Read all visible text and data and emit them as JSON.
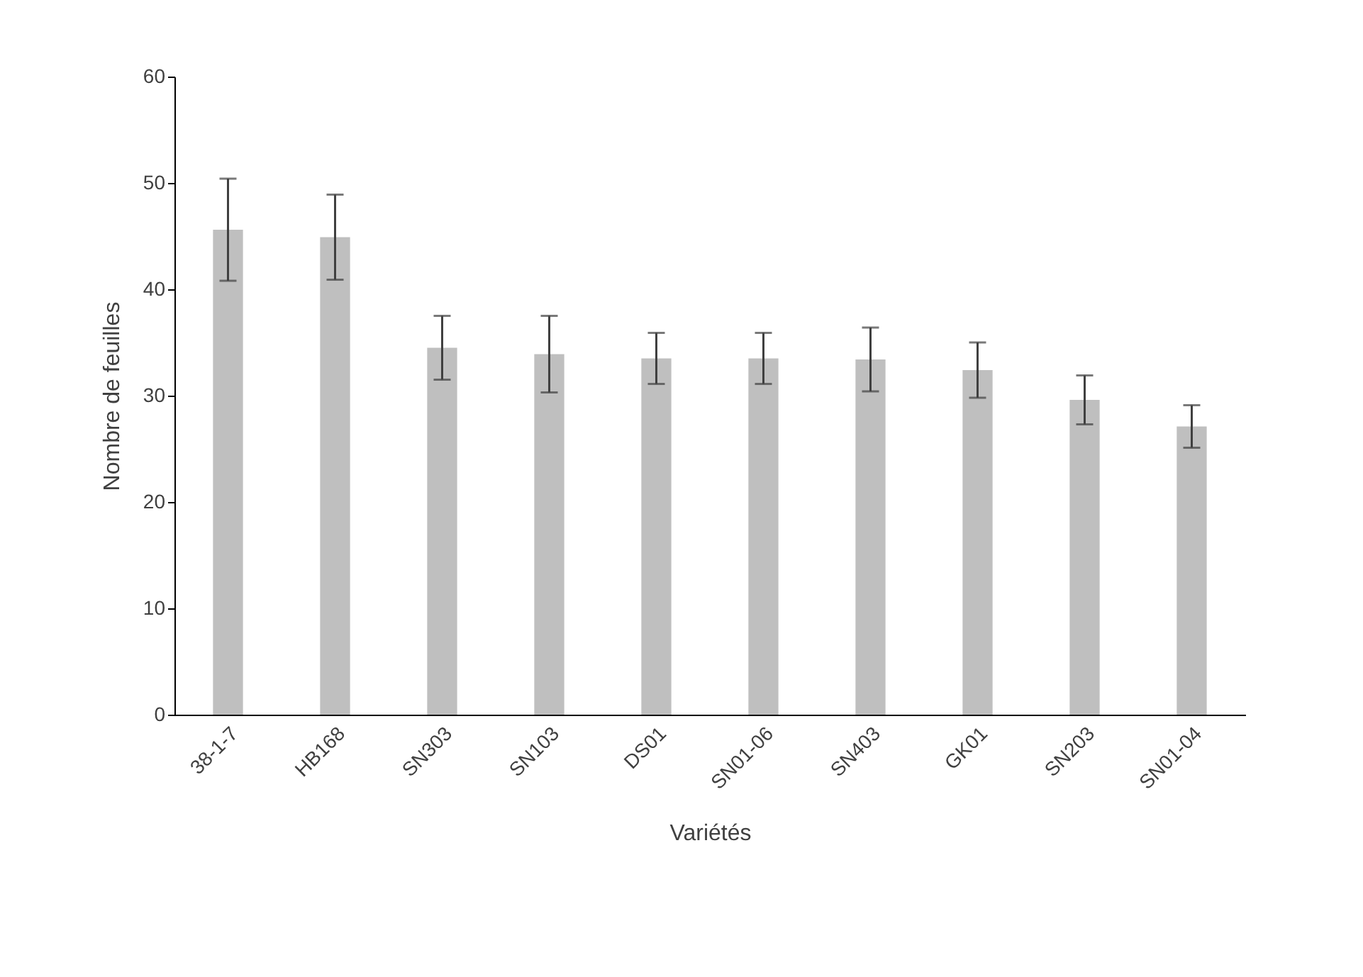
{
  "chart_data": {
    "type": "bar",
    "xlabel": "Variétés",
    "ylabel": "Nombre de feuilles",
    "categories": [
      "38-1-7",
      "HB168",
      "SN303",
      "SN103",
      "DS01",
      "SN01-06",
      "SN403",
      "GK01",
      "SN203",
      "SN01-04"
    ],
    "values": [
      45.6,
      44.9,
      34.5,
      33.9,
      33.5,
      33.5,
      33.4,
      32.4,
      29.6,
      27.1
    ],
    "errors": [
      4.8,
      4.0,
      3.0,
      3.6,
      2.4,
      2.4,
      3.0,
      2.6,
      2.3,
      2.0
    ],
    "color": "#bfbfbf",
    "ylim": [
      0,
      60
    ],
    "yticks": [
      0,
      10,
      20,
      30,
      40,
      50,
      60
    ],
    "grid": false
  }
}
